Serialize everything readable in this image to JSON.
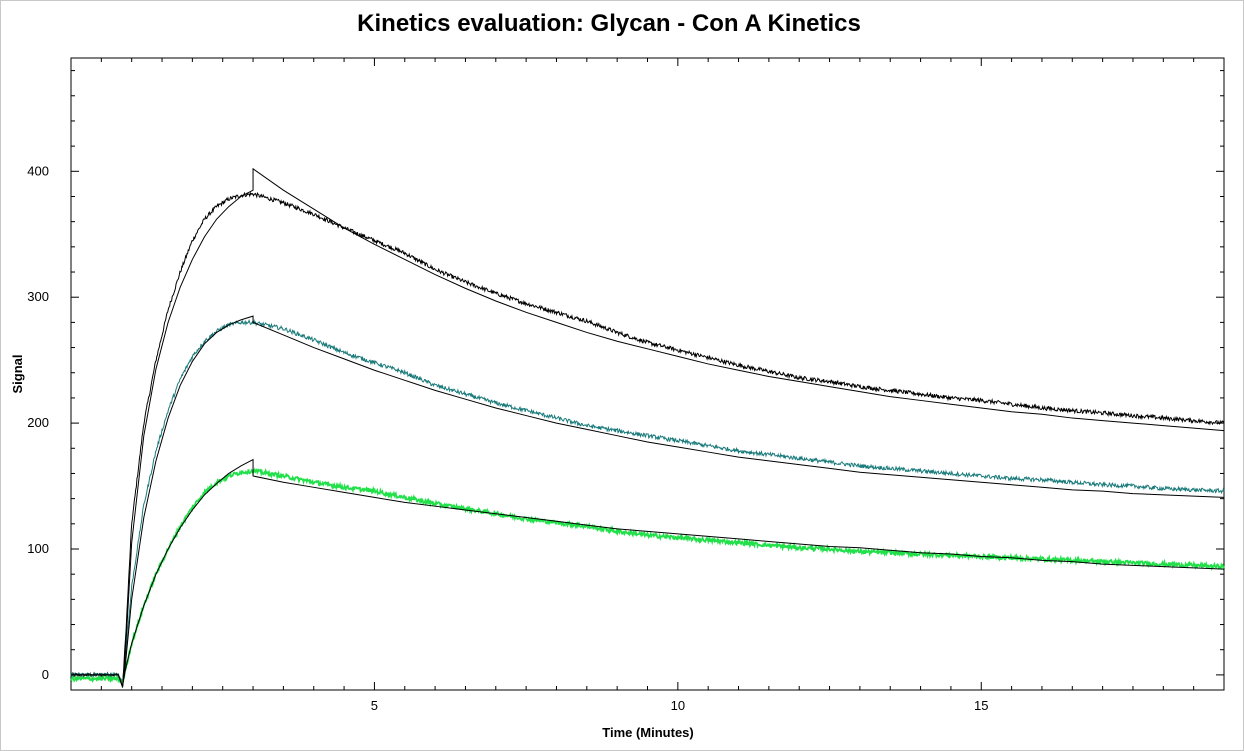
{
  "chart_data": {
    "type": "line",
    "title": "Kinetics evaluation: Glycan - Con A Kinetics",
    "xlabel": "Time (Minutes)",
    "ylabel": "Signal",
    "xlim": [
      0,
      19
    ],
    "ylim": [
      -12,
      490
    ],
    "x_ticks": [
      5,
      10,
      15
    ],
    "y_ticks": [
      0,
      100,
      200,
      300,
      400
    ],
    "grid": false,
    "legend": "none",
    "fit_color": "#000000",
    "series": [
      {
        "color": "#000000",
        "points": [
          [
            0,
            0
          ],
          [
            0.78,
            0
          ],
          [
            0.85,
            -8
          ],
          [
            0.9,
            30
          ],
          [
            1.0,
            120
          ],
          [
            1.2,
            200
          ],
          [
            1.4,
            250
          ],
          [
            1.6,
            290
          ],
          [
            1.8,
            320
          ],
          [
            2.0,
            345
          ],
          [
            2.2,
            362
          ],
          [
            2.4,
            372
          ],
          [
            2.6,
            378
          ],
          [
            2.8,
            381
          ],
          [
            3.0,
            382
          ],
          [
            3.5,
            375
          ],
          [
            4.0,
            366
          ],
          [
            4.5,
            355
          ],
          [
            5.0,
            345
          ],
          [
            5.5,
            335
          ],
          [
            6.0,
            322
          ],
          [
            6.5,
            312
          ],
          [
            7.0,
            303
          ],
          [
            7.5,
            295
          ],
          [
            8.0,
            288
          ],
          [
            8.5,
            281
          ],
          [
            9.0,
            272
          ],
          [
            9.5,
            264
          ],
          [
            10.0,
            258
          ],
          [
            10.5,
            252
          ],
          [
            11.0,
            246
          ],
          [
            11.5,
            241
          ],
          [
            12.0,
            236
          ],
          [
            12.5,
            233
          ],
          [
            13.0,
            229
          ],
          [
            13.5,
            226
          ],
          [
            14.0,
            223
          ],
          [
            14.5,
            220
          ],
          [
            15.0,
            218
          ],
          [
            15.5,
            215
          ],
          [
            16.0,
            212
          ],
          [
            16.5,
            210
          ],
          [
            17.0,
            208
          ],
          [
            17.5,
            206
          ],
          [
            18.0,
            204
          ],
          [
            18.5,
            202
          ],
          [
            19.0,
            200
          ]
        ]
      },
      {
        "color": "#1a7a7a",
        "points": [
          [
            0,
            0
          ],
          [
            0.78,
            0
          ],
          [
            0.85,
            -6
          ],
          [
            0.9,
            15
          ],
          [
            1.0,
            70
          ],
          [
            1.2,
            135
          ],
          [
            1.4,
            178
          ],
          [
            1.6,
            210
          ],
          [
            1.8,
            235
          ],
          [
            2.0,
            253
          ],
          [
            2.2,
            265
          ],
          [
            2.4,
            273
          ],
          [
            2.6,
            278
          ],
          [
            2.8,
            280
          ],
          [
            3.0,
            280
          ],
          [
            3.5,
            275
          ],
          [
            4.0,
            266
          ],
          [
            4.5,
            256
          ],
          [
            5.0,
            248
          ],
          [
            5.5,
            240
          ],
          [
            6.0,
            230
          ],
          [
            6.5,
            223
          ],
          [
            7.0,
            216
          ],
          [
            7.5,
            210
          ],
          [
            8.0,
            204
          ],
          [
            8.5,
            198
          ],
          [
            9.0,
            194
          ],
          [
            9.5,
            190
          ],
          [
            10.0,
            186
          ],
          [
            10.5,
            182
          ],
          [
            11.0,
            178
          ],
          [
            11.5,
            175
          ],
          [
            12.0,
            172
          ],
          [
            12.5,
            169
          ],
          [
            13.0,
            166
          ],
          [
            13.5,
            164
          ],
          [
            14.0,
            162
          ],
          [
            14.5,
            160
          ],
          [
            15.0,
            158
          ],
          [
            15.5,
            156
          ],
          [
            16.0,
            155
          ],
          [
            16.5,
            153
          ],
          [
            17.0,
            151
          ],
          [
            17.5,
            150
          ],
          [
            18.0,
            148
          ],
          [
            18.5,
            147
          ],
          [
            19.0,
            146
          ]
        ]
      },
      {
        "color": "#22e04a",
        "points": [
          [
            0,
            -3
          ],
          [
            0.78,
            -3
          ],
          [
            0.85,
            -7
          ],
          [
            0.9,
            5
          ],
          [
            1.0,
            25
          ],
          [
            1.2,
            55
          ],
          [
            1.4,
            80
          ],
          [
            1.6,
            100
          ],
          [
            1.8,
            118
          ],
          [
            2.0,
            133
          ],
          [
            2.2,
            145
          ],
          [
            2.4,
            153
          ],
          [
            2.6,
            158
          ],
          [
            2.8,
            161
          ],
          [
            3.0,
            162
          ],
          [
            3.5,
            158
          ],
          [
            4.0,
            153
          ],
          [
            4.5,
            149
          ],
          [
            5.0,
            146
          ],
          [
            5.5,
            141
          ],
          [
            6.0,
            136
          ],
          [
            6.5,
            132
          ],
          [
            7.0,
            128
          ],
          [
            7.5,
            124
          ],
          [
            8.0,
            121
          ],
          [
            8.5,
            118
          ],
          [
            9.0,
            114
          ],
          [
            9.5,
            111
          ],
          [
            10.0,
            109
          ],
          [
            10.5,
            107
          ],
          [
            11.0,
            105
          ],
          [
            11.5,
            103
          ],
          [
            12.0,
            101
          ],
          [
            12.5,
            100
          ],
          [
            13.0,
            98
          ],
          [
            13.5,
            97
          ],
          [
            14.0,
            96
          ],
          [
            14.5,
            95
          ],
          [
            15.0,
            94
          ],
          [
            15.5,
            93
          ],
          [
            16.0,
            92
          ],
          [
            16.5,
            91
          ],
          [
            17.0,
            90
          ],
          [
            17.5,
            89
          ],
          [
            18.0,
            88
          ],
          [
            18.5,
            87
          ],
          [
            19.0,
            86
          ]
        ]
      }
    ],
    "fits": [
      {
        "points": [
          [
            0,
            0
          ],
          [
            0.78,
            0
          ],
          [
            0.85,
            -10
          ],
          [
            0.9,
            20
          ],
          [
            1.0,
            105
          ],
          [
            1.2,
            190
          ],
          [
            1.4,
            243
          ],
          [
            1.6,
            280
          ],
          [
            1.8,
            308
          ],
          [
            2.0,
            330
          ],
          [
            2.2,
            348
          ],
          [
            2.4,
            362
          ],
          [
            2.6,
            372
          ],
          [
            2.8,
            380
          ],
          [
            3.0,
            385
          ],
          [
            3.0,
            402
          ],
          [
            3.5,
            385
          ],
          [
            4.0,
            370
          ],
          [
            4.5,
            355
          ],
          [
            5.0,
            342
          ],
          [
            5.5,
            330
          ],
          [
            6.0,
            318
          ],
          [
            6.5,
            307
          ],
          [
            7.0,
            297
          ],
          [
            7.5,
            288
          ],
          [
            8.0,
            280
          ],
          [
            8.5,
            272
          ],
          [
            9.0,
            265
          ],
          [
            9.5,
            259
          ],
          [
            10.0,
            253
          ],
          [
            10.5,
            247
          ],
          [
            11.0,
            242
          ],
          [
            11.5,
            237
          ],
          [
            12.0,
            233
          ],
          [
            12.5,
            229
          ],
          [
            13.0,
            225
          ],
          [
            13.5,
            221
          ],
          [
            14.0,
            218
          ],
          [
            14.5,
            215
          ],
          [
            15.0,
            212
          ],
          [
            15.5,
            209
          ],
          [
            16.0,
            207
          ],
          [
            16.5,
            204
          ],
          [
            17.0,
            202
          ],
          [
            17.5,
            200
          ],
          [
            18.0,
            198
          ],
          [
            18.5,
            196
          ],
          [
            19.0,
            194
          ]
        ]
      },
      {
        "points": [
          [
            0,
            0
          ],
          [
            0.78,
            0
          ],
          [
            0.85,
            -9
          ],
          [
            0.9,
            10
          ],
          [
            1.0,
            60
          ],
          [
            1.2,
            125
          ],
          [
            1.4,
            170
          ],
          [
            1.6,
            204
          ],
          [
            1.8,
            230
          ],
          [
            2.0,
            249
          ],
          [
            2.2,
            263
          ],
          [
            2.4,
            272
          ],
          [
            2.6,
            278
          ],
          [
            2.8,
            282
          ],
          [
            3.0,
            285
          ],
          [
            3.0,
            280
          ],
          [
            3.5,
            270
          ],
          [
            4.0,
            260
          ],
          [
            4.5,
            251
          ],
          [
            5.0,
            242
          ],
          [
            5.5,
            234
          ],
          [
            6.0,
            226
          ],
          [
            6.5,
            219
          ],
          [
            7.0,
            212
          ],
          [
            7.5,
            206
          ],
          [
            8.0,
            200
          ],
          [
            8.5,
            195
          ],
          [
            9.0,
            190
          ],
          [
            9.5,
            185
          ],
          [
            10.0,
            181
          ],
          [
            10.5,
            177
          ],
          [
            11.0,
            173
          ],
          [
            11.5,
            170
          ],
          [
            12.0,
            167
          ],
          [
            12.5,
            164
          ],
          [
            13.0,
            161
          ],
          [
            13.5,
            159
          ],
          [
            14.0,
            157
          ],
          [
            14.5,
            155
          ],
          [
            15.0,
            153
          ],
          [
            15.5,
            151
          ],
          [
            16.0,
            149
          ],
          [
            16.5,
            147
          ],
          [
            17.0,
            146
          ],
          [
            17.5,
            144
          ],
          [
            18.0,
            143
          ],
          [
            18.5,
            142
          ],
          [
            19.0,
            141
          ]
        ]
      },
      {
        "points": [
          [
            0,
            0
          ],
          [
            0.78,
            0
          ],
          [
            0.85,
            -9
          ],
          [
            0.9,
            5
          ],
          [
            1.0,
            25
          ],
          [
            1.2,
            55
          ],
          [
            1.4,
            80
          ],
          [
            1.6,
            100
          ],
          [
            1.8,
            117
          ],
          [
            2.0,
            131
          ],
          [
            2.2,
            143
          ],
          [
            2.4,
            152
          ],
          [
            2.6,
            160
          ],
          [
            2.8,
            166
          ],
          [
            3.0,
            171
          ],
          [
            3.0,
            158
          ],
          [
            3.5,
            153
          ],
          [
            4.0,
            149
          ],
          [
            4.5,
            145
          ],
          [
            5.0,
            141
          ],
          [
            5.5,
            137
          ],
          [
            6.0,
            134
          ],
          [
            6.5,
            131
          ],
          [
            7.0,
            128
          ],
          [
            7.5,
            125
          ],
          [
            8.0,
            122
          ],
          [
            8.5,
            119
          ],
          [
            9.0,
            116
          ],
          [
            9.5,
            114
          ],
          [
            10.0,
            112
          ],
          [
            10.5,
            110
          ],
          [
            11.0,
            108
          ],
          [
            11.5,
            106
          ],
          [
            12.0,
            104
          ],
          [
            12.5,
            102
          ],
          [
            13.0,
            101
          ],
          [
            13.5,
            99
          ],
          [
            14.0,
            97
          ],
          [
            14.5,
            96
          ],
          [
            15.0,
            94
          ],
          [
            15.5,
            93
          ],
          [
            16.0,
            91
          ],
          [
            16.5,
            90
          ],
          [
            17.0,
            88
          ],
          [
            17.5,
            87
          ],
          [
            18.0,
            86
          ],
          [
            18.5,
            85
          ],
          [
            19.0,
            84
          ]
        ]
      }
    ]
  }
}
